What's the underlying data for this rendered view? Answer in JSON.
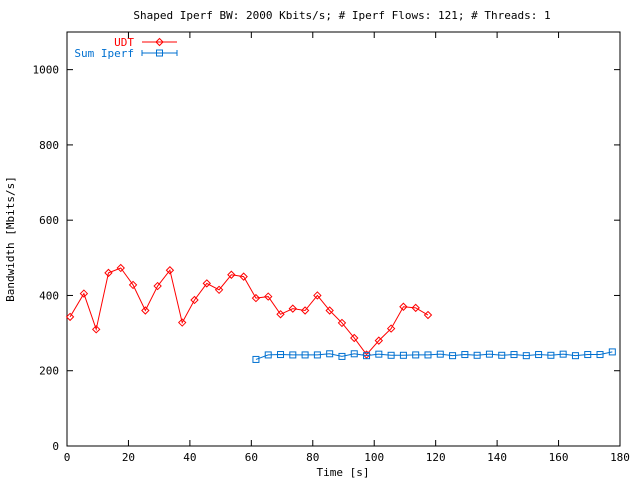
{
  "chart_data": {
    "type": "line",
    "title": "Shaped Iperf BW: 2000 Kbits/s; # Iperf Flows: 121; # Threads: 1",
    "xlabel": "Time [s]",
    "ylabel": "Bandwidth [Mbits/s]",
    "xlim": [
      0,
      180
    ],
    "ylim": [
      0,
      1100
    ],
    "xticks": [
      "0",
      "20",
      "40",
      "60",
      "80",
      "100",
      "120",
      "140",
      "160",
      "180"
    ],
    "yticks": [
      "0",
      "200",
      "400",
      "600",
      "800",
      "1000"
    ],
    "grid": false,
    "legend_position": "top-left",
    "series": [
      {
        "name": "UDT",
        "color": "#ff0000",
        "marker": "diamond",
        "x": [
          1,
          5.5,
          9.5,
          13.5,
          17.5,
          21.5,
          25.5,
          29.5,
          33.5,
          37.5,
          41.5,
          45.5,
          49.5,
          53.5,
          57.5,
          61.5,
          65.5,
          69.5,
          73.5,
          77.5,
          81.5,
          85.5,
          89.5,
          93.5,
          97.5,
          101.5,
          105.5,
          109.5,
          113.5,
          117.5
        ],
        "y": [
          343,
          405,
          310,
          460,
          473,
          428,
          360,
          425,
          467,
          328,
          388,
          432,
          415,
          455,
          450,
          393,
          397,
          350,
          365,
          360,
          400,
          360,
          327,
          287,
          243,
          280,
          312,
          370,
          367,
          348
        ]
      },
      {
        "name": "Sum Iperf",
        "color": "#0070d0",
        "marker": "square",
        "x": [
          61.5,
          65.5,
          69.5,
          73.5,
          77.5,
          81.5,
          85.5,
          89.5,
          93.5,
          97.5,
          101.5,
          105.5,
          109.5,
          113.5,
          117.5,
          121.5,
          125.5,
          129.5,
          133.5,
          137.5,
          141.5,
          145.5,
          149.5,
          153.5,
          157.5,
          161.5,
          165.5,
          169.5,
          173.5,
          177.5
        ],
        "y": [
          230,
          242,
          243,
          242,
          242,
          242,
          245,
          238,
          245,
          240,
          244,
          241,
          241,
          242,
          242,
          244,
          240,
          243,
          241,
          244,
          241,
          243,
          240,
          243,
          241,
          244,
          240,
          243,
          243,
          250
        ]
      }
    ]
  }
}
